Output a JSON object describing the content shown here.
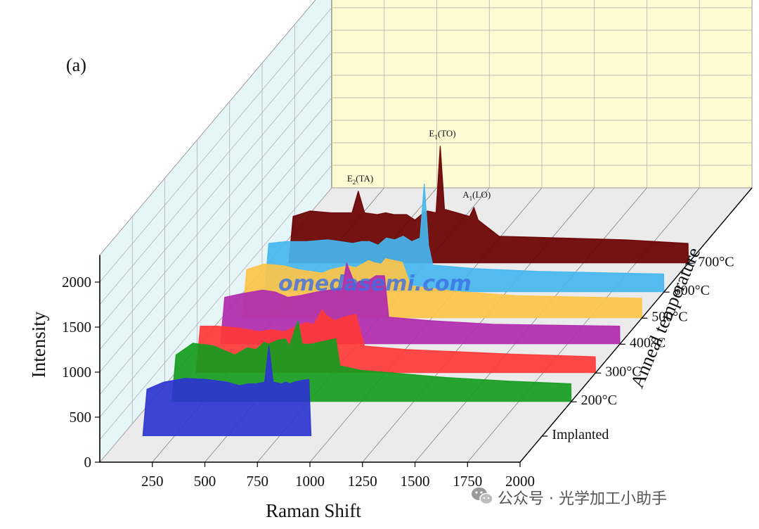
{
  "panel_label": "(a)",
  "watermark": "omedasemi.com",
  "credit": "公众号 · 光学加工小助手",
  "colors": {
    "Implanted": "#2e34d0",
    "200°C": "#169c1e",
    "300°C": "#ff3838",
    "400°C": "#b02aae",
    "500°C": "#fcc44a",
    "600°C": "#45b6ee",
    "700°C": "#6a0000",
    "left_wall": "#e6f5f8",
    "back_wall": "#fffbd2",
    "floor": "#ebebeb"
  },
  "chart_data": {
    "type": "area",
    "variant": "3d-waterfall",
    "xlabel": "Raman Shift",
    "ylabel": "Intensity",
    "zlabel": "Anneal temperature",
    "xlim": [
      0,
      2000
    ],
    "ylim": [
      0,
      2300
    ],
    "x_ticks": [
      250,
      500,
      750,
      1000,
      1250,
      1500,
      1750,
      2000
    ],
    "y_ticks": [
      0,
      500,
      1000,
      1500,
      2000
    ],
    "annotations": [
      {
        "main": "E",
        "sub": "2",
        "tail": "(TA)",
        "x": 430,
        "series": "700°C"
      },
      {
        "main": "E",
        "sub": "1",
        "tail": "(TO)",
        "x": 820,
        "series": "700°C"
      },
      {
        "main": "A",
        "sub": "1",
        "tail": "(LO)",
        "x": 980,
        "series": "700°C"
      }
    ],
    "series": [
      {
        "name": "Implanted",
        "points": [
          [
            100,
            0
          ],
          [
            120,
            520
          ],
          [
            200,
            600
          ],
          [
            300,
            640
          ],
          [
            400,
            630
          ],
          [
            500,
            600
          ],
          [
            560,
            560
          ],
          [
            600,
            580
          ],
          [
            640,
            580
          ],
          [
            680,
            600
          ],
          [
            700,
            1000
          ],
          [
            720,
            600
          ],
          [
            760,
            580
          ],
          [
            780,
            600
          ],
          [
            800,
            580
          ],
          [
            820,
            600
          ],
          [
            860,
            620
          ],
          [
            890,
            630
          ],
          [
            900,
            0
          ]
        ]
      },
      {
        "name": "200°C",
        "points": [
          [
            100,
            0
          ],
          [
            120,
            520
          ],
          [
            200,
            650
          ],
          [
            300,
            620
          ],
          [
            360,
            560
          ],
          [
            400,
            520
          ],
          [
            460,
            600
          ],
          [
            500,
            580
          ],
          [
            540,
            660
          ],
          [
            560,
            640
          ],
          [
            600,
            680
          ],
          [
            640,
            700
          ],
          [
            660,
            620
          ],
          [
            700,
            900
          ],
          [
            720,
            640
          ],
          [
            760,
            640
          ],
          [
            800,
            660
          ],
          [
            840,
            680
          ],
          [
            880,
            700
          ],
          [
            900,
            400
          ],
          [
            1000,
            350
          ],
          [
            1200,
            310
          ],
          [
            1400,
            270
          ],
          [
            1700,
            230
          ],
          [
            1999,
            200
          ],
          [
            2000,
            0
          ]
        ]
      },
      {
        "name": "300°C",
        "points": [
          [
            100,
            0
          ],
          [
            120,
            520
          ],
          [
            200,
            520
          ],
          [
            300,
            500
          ],
          [
            400,
            460
          ],
          [
            460,
            480
          ],
          [
            520,
            460
          ],
          [
            560,
            500
          ],
          [
            620,
            560
          ],
          [
            660,
            540
          ],
          [
            700,
            700
          ],
          [
            720,
            640
          ],
          [
            760,
            580
          ],
          [
            800,
            620
          ],
          [
            860,
            650
          ],
          [
            900,
            300
          ],
          [
            1100,
            260
          ],
          [
            1300,
            240
          ],
          [
            1600,
            210
          ],
          [
            1999,
            180
          ],
          [
            2000,
            0
          ]
        ]
      },
      {
        "name": "400°C",
        "points": [
          [
            100,
            0
          ],
          [
            120,
            520
          ],
          [
            200,
            560
          ],
          [
            300,
            600
          ],
          [
            360,
            580
          ],
          [
            420,
            520
          ],
          [
            480,
            540
          ],
          [
            520,
            560
          ],
          [
            560,
            580
          ],
          [
            620,
            600
          ],
          [
            680,
            620
          ],
          [
            700,
            900
          ],
          [
            740,
            660
          ],
          [
            760,
            700
          ],
          [
            800,
            700
          ],
          [
            840,
            760
          ],
          [
            880,
            760
          ],
          [
            900,
            300
          ],
          [
            1100,
            260
          ],
          [
            1400,
            220
          ],
          [
            1999,
            200
          ],
          [
            2000,
            0
          ]
        ]
      },
      {
        "name": "500°C",
        "points": [
          [
            100,
            0
          ],
          [
            120,
            540
          ],
          [
            200,
            600
          ],
          [
            300,
            580
          ],
          [
            360,
            540
          ],
          [
            420,
            520
          ],
          [
            480,
            500
          ],
          [
            520,
            540
          ],
          [
            560,
            560
          ],
          [
            600,
            580
          ],
          [
            640,
            560
          ],
          [
            700,
            640
          ],
          [
            720,
            620
          ],
          [
            760,
            600
          ],
          [
            780,
            660
          ],
          [
            820,
            640
          ],
          [
            860,
            620
          ],
          [
            900,
            360
          ],
          [
            1100,
            300
          ],
          [
            1400,
            250
          ],
          [
            1999,
            220
          ],
          [
            2000,
            0
          ]
        ]
      },
      {
        "name": "600°C",
        "points": [
          [
            100,
            0
          ],
          [
            120,
            540
          ],
          [
            200,
            560
          ],
          [
            300,
            560
          ],
          [
            400,
            580
          ],
          [
            460,
            560
          ],
          [
            520,
            540
          ],
          [
            560,
            560
          ],
          [
            600,
            560
          ],
          [
            640,
            520
          ],
          [
            680,
            600
          ],
          [
            720,
            580
          ],
          [
            760,
            620
          ],
          [
            800,
            560
          ],
          [
            840,
            600
          ],
          [
            860,
            1200
          ],
          [
            880,
            520
          ],
          [
            900,
            300
          ],
          [
            1100,
            260
          ],
          [
            1400,
            230
          ],
          [
            1999,
            200
          ],
          [
            2000,
            0
          ]
        ]
      },
      {
        "name": "700°C",
        "points": [
          [
            100,
            0
          ],
          [
            120,
            520
          ],
          [
            200,
            580
          ],
          [
            300,
            560
          ],
          [
            400,
            560
          ],
          [
            430,
            800
          ],
          [
            460,
            560
          ],
          [
            520,
            540
          ],
          [
            560,
            560
          ],
          [
            600,
            540
          ],
          [
            660,
            540
          ],
          [
            700,
            480
          ],
          [
            740,
            560
          ],
          [
            760,
            580
          ],
          [
            800,
            560
          ],
          [
            820,
            1300
          ],
          [
            840,
            600
          ],
          [
            900,
            560
          ],
          [
            960,
            520
          ],
          [
            980,
            620
          ],
          [
            1000,
            480
          ],
          [
            1100,
            300
          ],
          [
            1400,
            280
          ],
          [
            1700,
            260
          ],
          [
            1999,
            220
          ],
          [
            2000,
            0
          ]
        ]
      }
    ]
  }
}
